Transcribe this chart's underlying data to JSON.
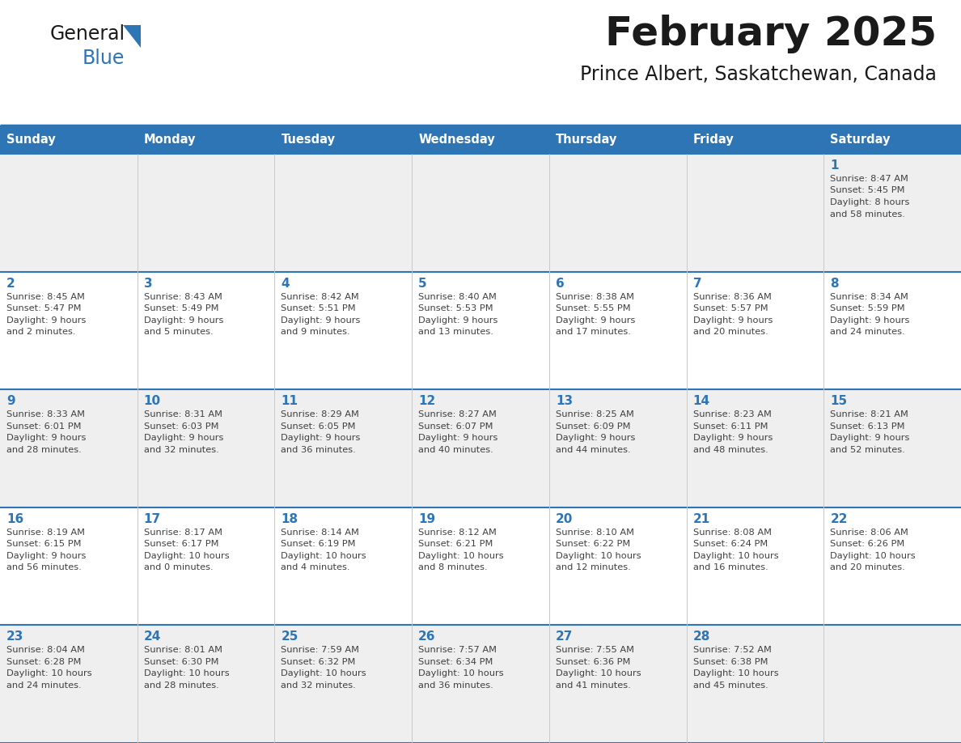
{
  "title": "February 2025",
  "subtitle": "Prince Albert, Saskatchewan, Canada",
  "header_color": "#2E75B6",
  "header_text_color": "#FFFFFF",
  "day_names": [
    "Sunday",
    "Monday",
    "Tuesday",
    "Wednesday",
    "Thursday",
    "Friday",
    "Saturday"
  ],
  "grid_line_color": "#2E75B6",
  "cell_bg_even": "#EFEFEF",
  "cell_bg_odd": "#FFFFFF",
  "day_num_color": "#2E75B6",
  "text_color": "#333333",
  "calendar": [
    [
      null,
      null,
      null,
      null,
      null,
      null,
      1
    ],
    [
      2,
      3,
      4,
      5,
      6,
      7,
      8
    ],
    [
      9,
      10,
      11,
      12,
      13,
      14,
      15
    ],
    [
      16,
      17,
      18,
      19,
      20,
      21,
      22
    ],
    [
      23,
      24,
      25,
      26,
      27,
      28,
      null
    ]
  ],
  "sunrise_data": {
    "1": {
      "sunrise": "8:47 AM",
      "sunset": "5:45 PM",
      "daylight_h": "8 hours",
      "daylight_m": "58 minutes"
    },
    "2": {
      "sunrise": "8:45 AM",
      "sunset": "5:47 PM",
      "daylight_h": "9 hours",
      "daylight_m": "2 minutes"
    },
    "3": {
      "sunrise": "8:43 AM",
      "sunset": "5:49 PM",
      "daylight_h": "9 hours",
      "daylight_m": "5 minutes"
    },
    "4": {
      "sunrise": "8:42 AM",
      "sunset": "5:51 PM",
      "daylight_h": "9 hours",
      "daylight_m": "9 minutes"
    },
    "5": {
      "sunrise": "8:40 AM",
      "sunset": "5:53 PM",
      "daylight_h": "9 hours",
      "daylight_m": "13 minutes"
    },
    "6": {
      "sunrise": "8:38 AM",
      "sunset": "5:55 PM",
      "daylight_h": "9 hours",
      "daylight_m": "17 minutes"
    },
    "7": {
      "sunrise": "8:36 AM",
      "sunset": "5:57 PM",
      "daylight_h": "9 hours",
      "daylight_m": "20 minutes"
    },
    "8": {
      "sunrise": "8:34 AM",
      "sunset": "5:59 PM",
      "daylight_h": "9 hours",
      "daylight_m": "24 minutes"
    },
    "9": {
      "sunrise": "8:33 AM",
      "sunset": "6:01 PM",
      "daylight_h": "9 hours",
      "daylight_m": "28 minutes"
    },
    "10": {
      "sunrise": "8:31 AM",
      "sunset": "6:03 PM",
      "daylight_h": "9 hours",
      "daylight_m": "32 minutes"
    },
    "11": {
      "sunrise": "8:29 AM",
      "sunset": "6:05 PM",
      "daylight_h": "9 hours",
      "daylight_m": "36 minutes"
    },
    "12": {
      "sunrise": "8:27 AM",
      "sunset": "6:07 PM",
      "daylight_h": "9 hours",
      "daylight_m": "40 minutes"
    },
    "13": {
      "sunrise": "8:25 AM",
      "sunset": "6:09 PM",
      "daylight_h": "9 hours",
      "daylight_m": "44 minutes"
    },
    "14": {
      "sunrise": "8:23 AM",
      "sunset": "6:11 PM",
      "daylight_h": "9 hours",
      "daylight_m": "48 minutes"
    },
    "15": {
      "sunrise": "8:21 AM",
      "sunset": "6:13 PM",
      "daylight_h": "9 hours",
      "daylight_m": "52 minutes"
    },
    "16": {
      "sunrise": "8:19 AM",
      "sunset": "6:15 PM",
      "daylight_h": "9 hours",
      "daylight_m": "56 minutes"
    },
    "17": {
      "sunrise": "8:17 AM",
      "sunset": "6:17 PM",
      "daylight_h": "10 hours",
      "daylight_m": "0 minutes"
    },
    "18": {
      "sunrise": "8:14 AM",
      "sunset": "6:19 PM",
      "daylight_h": "10 hours",
      "daylight_m": "4 minutes"
    },
    "19": {
      "sunrise": "8:12 AM",
      "sunset": "6:21 PM",
      "daylight_h": "10 hours",
      "daylight_m": "8 minutes"
    },
    "20": {
      "sunrise": "8:10 AM",
      "sunset": "6:22 PM",
      "daylight_h": "10 hours",
      "daylight_m": "12 minutes"
    },
    "21": {
      "sunrise": "8:08 AM",
      "sunset": "6:24 PM",
      "daylight_h": "10 hours",
      "daylight_m": "16 minutes"
    },
    "22": {
      "sunrise": "8:06 AM",
      "sunset": "6:26 PM",
      "daylight_h": "10 hours",
      "daylight_m": "20 minutes"
    },
    "23": {
      "sunrise": "8:04 AM",
      "sunset": "6:28 PM",
      "daylight_h": "10 hours",
      "daylight_m": "24 minutes"
    },
    "24": {
      "sunrise": "8:01 AM",
      "sunset": "6:30 PM",
      "daylight_h": "10 hours",
      "daylight_m": "28 minutes"
    },
    "25": {
      "sunrise": "7:59 AM",
      "sunset": "6:32 PM",
      "daylight_h": "10 hours",
      "daylight_m": "32 minutes"
    },
    "26": {
      "sunrise": "7:57 AM",
      "sunset": "6:34 PM",
      "daylight_h": "10 hours",
      "daylight_m": "36 minutes"
    },
    "27": {
      "sunrise": "7:55 AM",
      "sunset": "6:36 PM",
      "daylight_h": "10 hours",
      "daylight_m": "41 minutes"
    },
    "28": {
      "sunrise": "7:52 AM",
      "sunset": "6:38 PM",
      "daylight_h": "10 hours",
      "daylight_m": "45 minutes"
    }
  }
}
